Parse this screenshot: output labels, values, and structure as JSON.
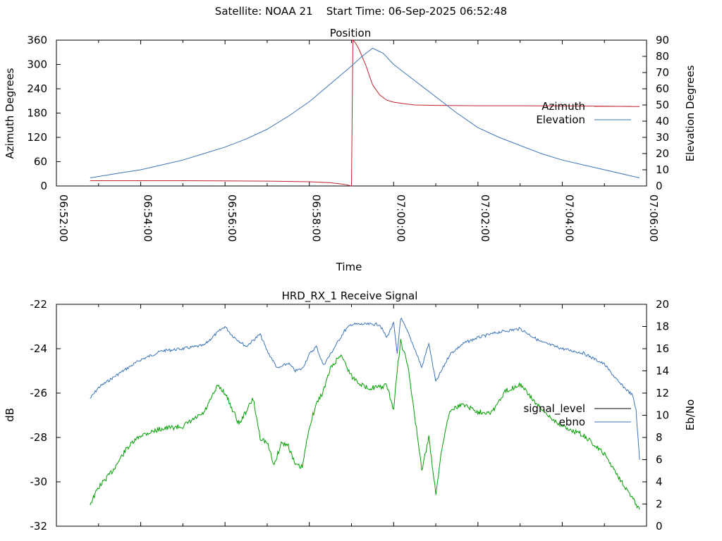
{
  "header": {
    "satellite_label": "Satellite:",
    "satellite": "NOAA 21",
    "start_label": "Start Time:",
    "start_time": "06-Sep-2025 06:52:48"
  },
  "chart_data": [
    {
      "type": "line",
      "title": "Position",
      "xlabel": "Time",
      "ylabel": "Azimuth Degrees",
      "y2label": "Elevation Degrees",
      "xlim": [
        "06:52:00",
        "07:06:00"
      ],
      "xticks": [
        "06:52:00",
        "06:54:00",
        "06:56:00",
        "06:58:00",
        "07:00:00",
        "07:02:00",
        "07:04:00",
        "07:06:00"
      ],
      "ylim": [
        0,
        360
      ],
      "yticks": [
        0,
        60,
        120,
        180,
        240,
        300,
        360
      ],
      "y2lim": [
        0,
        90
      ],
      "y2ticks": [
        0,
        10,
        20,
        30,
        40,
        50,
        60,
        70,
        80,
        90
      ],
      "legend_position": "right",
      "colors": {
        "azimuth": "#c0202c",
        "elevation": "#3c74b8"
      },
      "series": [
        {
          "name": "Azimuth",
          "axis": "y",
          "x": [
            "06:52:48",
            "06:53:30",
            "06:54:00",
            "06:55:00",
            "06:56:00",
            "06:57:00",
            "06:58:00",
            "06:58:30",
            "06:58:50",
            "06:59:00",
            "06:59:02",
            "06:59:05",
            "06:59:10",
            "06:59:20",
            "06:59:30",
            "06:59:40",
            "06:59:50",
            "07:00:00",
            "07:00:15",
            "07:00:30",
            "07:01:00",
            "07:02:00",
            "07:03:00",
            "07:04:00",
            "07:05:00",
            "07:05:50"
          ],
          "values": [
            13,
            13,
            13,
            13,
            12.5,
            12,
            10.5,
            8,
            4,
            0,
            360,
            355,
            340,
            300,
            250,
            225,
            212,
            207,
            203,
            200,
            199,
            198,
            198,
            197.5,
            197,
            196
          ]
        },
        {
          "name": "Elevation",
          "axis": "y2",
          "x": [
            "06:52:48",
            "06:53:30",
            "06:54:00",
            "06:54:30",
            "06:55:00",
            "06:55:30",
            "06:56:00",
            "06:56:30",
            "06:57:00",
            "06:57:30",
            "06:58:00",
            "06:58:30",
            "06:59:00",
            "06:59:15",
            "06:59:30",
            "06:59:45",
            "07:00:00",
            "07:00:30",
            "07:01:00",
            "07:01:30",
            "07:02:00",
            "07:02:30",
            "07:03:00",
            "07:03:30",
            "07:04:00",
            "07:04:30",
            "07:05:00",
            "07:05:50"
          ],
          "values": [
            5,
            8,
            10,
            13,
            16,
            20,
            24,
            29,
            35,
            43,
            52,
            63,
            74,
            80,
            85,
            82,
            75,
            65,
            55,
            45,
            36,
            30,
            25,
            20,
            16,
            13,
            10,
            5
          ]
        }
      ]
    },
    {
      "type": "line",
      "title": "HRD_RX_1 Receive Signal",
      "xlabel": "",
      "ylabel": "dB",
      "y2label": "Eb/No",
      "xlim": [
        "06:52:00",
        "07:06:00"
      ],
      "ylim": [
        -32,
        -22
      ],
      "yticks": [
        -32,
        -30,
        -28,
        -26,
        -24,
        -22
      ],
      "y2lim": [
        0,
        20
      ],
      "y2ticks": [
        0,
        2,
        4,
        6,
        8,
        10,
        12,
        14,
        16,
        18,
        20
      ],
      "legend_position": "right",
      "colors": {
        "signal_level": "#000000",
        "ebno": "#3c74b8",
        "green_trace": "#00a000"
      },
      "series": [
        {
          "name": "ebno",
          "axis": "y2",
          "x": [
            "06:52:48",
            "06:53:00",
            "06:53:30",
            "06:54:00",
            "06:54:30",
            "06:55:00",
            "06:55:30",
            "06:55:50",
            "06:56:00",
            "06:56:10",
            "06:56:30",
            "06:56:50",
            "06:57:00",
            "06:57:15",
            "06:57:30",
            "06:57:40",
            "06:57:50",
            "06:58:00",
            "06:58:10",
            "06:58:20",
            "06:58:30",
            "06:58:50",
            "06:59:00",
            "06:59:20",
            "06:59:40",
            "06:59:50",
            "07:00:00",
            "07:00:05",
            "07:00:10",
            "07:00:20",
            "07:00:30",
            "07:00:40",
            "07:00:50",
            "07:01:00",
            "07:01:20",
            "07:01:40",
            "07:02:00",
            "07:02:30",
            "07:03:00",
            "07:03:30",
            "07:04:00",
            "07:04:30",
            "07:05:00",
            "07:05:20",
            "07:05:40",
            "07:05:45",
            "07:05:50"
          ],
          "values": [
            11.5,
            12.5,
            13.8,
            15,
            15.8,
            16,
            16.3,
            17.5,
            18,
            17.2,
            16.2,
            17.3,
            15.8,
            14.2,
            14.7,
            14,
            14.2,
            15.5,
            16.2,
            14.5,
            15.5,
            17.6,
            18.2,
            18.2,
            18.2,
            17,
            18.3,
            15.5,
            18.8,
            17.5,
            16,
            14.3,
            16.5,
            13,
            15.5,
            16.5,
            17,
            17.5,
            17.8,
            16.6,
            16,
            15.6,
            14.6,
            13,
            11.8,
            10.5,
            6
          ]
        },
        {
          "name": "",
          "axis": "y2",
          "x": [
            "06:52:48",
            "06:53:00",
            "06:53:20",
            "06:53:40",
            "06:54:00",
            "06:54:30",
            "06:55:00",
            "06:55:30",
            "06:55:50",
            "06:56:00",
            "06:56:20",
            "06:56:40",
            "06:56:50",
            "06:57:00",
            "06:57:10",
            "06:57:20",
            "06:57:30",
            "06:57:40",
            "06:57:50",
            "06:58:00",
            "06:58:10",
            "06:58:20",
            "06:58:30",
            "06:58:45",
            "06:59:00",
            "06:59:20",
            "06:59:40",
            "06:59:50",
            "07:00:00",
            "07:00:05",
            "07:00:10",
            "07:00:20",
            "07:00:30",
            "07:00:40",
            "07:00:50",
            "07:01:00",
            "07:01:10",
            "07:01:20",
            "07:01:40",
            "07:02:00",
            "07:02:20",
            "07:02:40",
            "07:03:00",
            "07:03:30",
            "07:04:00",
            "07:04:30",
            "07:05:00",
            "07:05:30",
            "07:05:50"
          ],
          "values": [
            2,
            3.5,
            5,
            7,
            8.2,
            8.8,
            9,
            10.2,
            12.7,
            12,
            9.2,
            11.5,
            8,
            7.5,
            5.5,
            7.5,
            7.3,
            5.5,
            5.3,
            9,
            11,
            12.2,
            14.2,
            15.5,
            13.5,
            12.5,
            12.5,
            12.7,
            10.5,
            14,
            16.7,
            14.5,
            10,
            5,
            8,
            3,
            7.5,
            10.5,
            11,
            10.3,
            10.3,
            12.2,
            12.8,
            10.5,
            9,
            8.2,
            6.5,
            3.5,
            1.5
          ]
        }
      ],
      "legend": [
        "signal_level",
        "ebno"
      ]
    }
  ]
}
